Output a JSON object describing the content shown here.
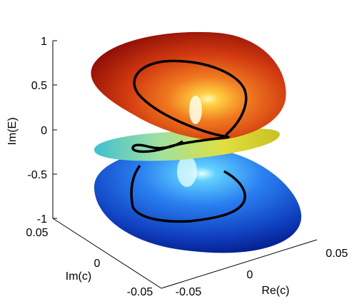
{
  "chart_data": {
    "type": "surface3d",
    "title": "",
    "axes": {
      "x": {
        "label": "Re(c)",
        "ticks": [
          "-0.05",
          "0",
          "0.05"
        ],
        "range": [
          -0.05,
          0.05
        ]
      },
      "y": {
        "label": "Im(c)",
        "ticks": [
          "-0.05",
          "0",
          "0.05"
        ],
        "range": [
          -0.05,
          0.05
        ]
      },
      "z": {
        "label": "Im(E)",
        "ticks": [
          "-1",
          "-0.5",
          "0",
          "0.5",
          "1"
        ],
        "range": [
          -1,
          1
        ]
      }
    },
    "grid": false,
    "box": "back axes only",
    "colormap": "jet",
    "surfaces": [
      {
        "sheet": "top",
        "level": 0.55,
        "color": "red"
      },
      {
        "sheet": "middle",
        "level": -0.05,
        "color": "cyan-yellow"
      },
      {
        "sheet": "bottom",
        "level": -0.6,
        "color": "blue"
      }
    ],
    "curve": {
      "description": "closed black loop passing through all three sheets",
      "color": "#000000"
    },
    "colors": {
      "top": "#c8200a",
      "middle": "#b8e060",
      "bottom": "#1a50d8",
      "curve": "#000000"
    }
  }
}
